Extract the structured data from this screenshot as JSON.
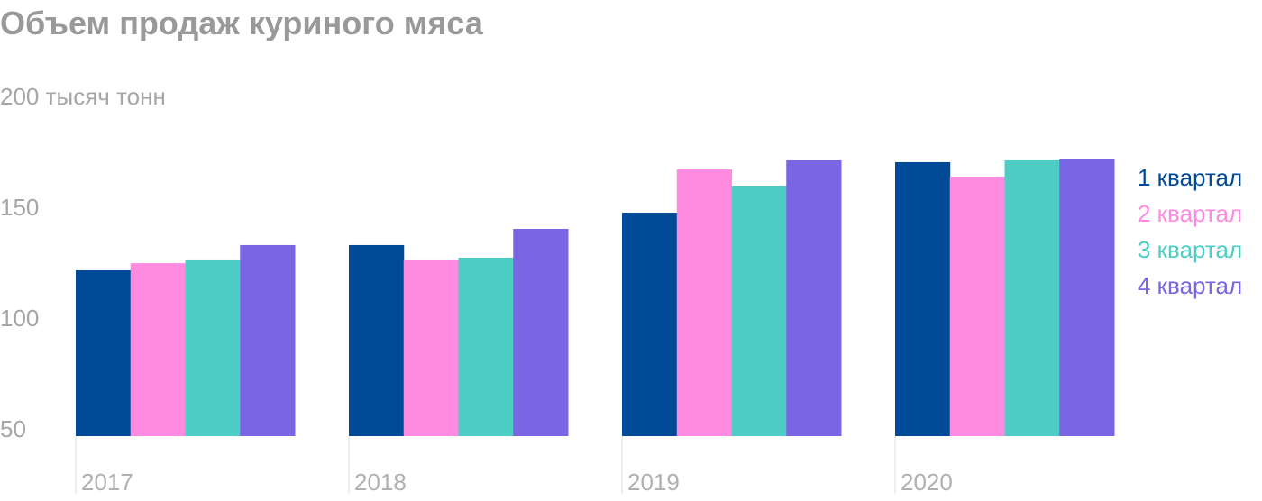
{
  "chart_data": {
    "type": "bar",
    "title": "Объем продаж куриного мяса",
    "categories": [
      "2017",
      "2018",
      "2019",
      "2020"
    ],
    "series": [
      {
        "name": "1 квартал",
        "color": "#004a98",
        "values": [
          124.8,
          136.2,
          150.8,
          173.6
        ]
      },
      {
        "name": "2 квартал",
        "color": "#ff8be0",
        "values": [
          128,
          129.7,
          170.3,
          167.1
        ]
      },
      {
        "name": "3 квартал",
        "color": "#4ecdc4",
        "values": [
          129.7,
          130.5,
          163,
          174.4
        ]
      },
      {
        "name": "4 квартал",
        "color": "#7a66e3",
        "values": [
          136.2,
          143.5,
          174.4,
          175.2
        ]
      }
    ],
    "ylim": [
      50,
      200
    ],
    "yticks": [
      50,
      100,
      150,
      {
        "value": 200,
        "label": "200 тысяч тонн"
      }
    ],
    "grid": false,
    "legend": "right"
  }
}
